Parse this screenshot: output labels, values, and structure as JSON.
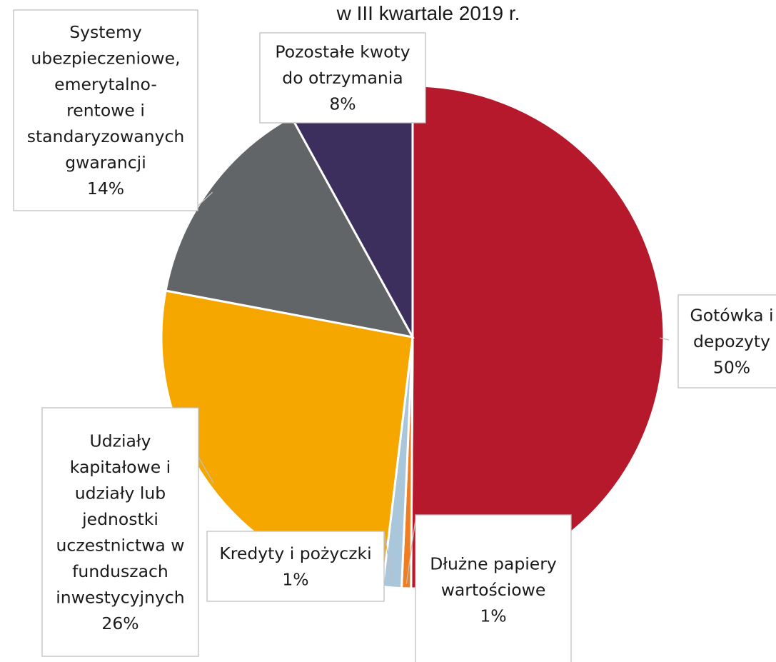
{
  "chart_data": {
    "type": "pie",
    "title": "w III kwartale 2019 r.",
    "start_angle_deg": 0,
    "direction": "clockwise",
    "slices": [
      {
        "label": [
          "Gotówka i",
          "depozyty"
        ],
        "value": 50,
        "display": "50%",
        "color": "#b5192b"
      },
      {
        "label": [
          "Dłużne papiery",
          "wartościowe"
        ],
        "value": 0.6,
        "display": "1%",
        "color": "#ef7d22"
      },
      {
        "label": [
          "Kredyty i pożyczki"
        ],
        "value": 1.2,
        "display": "1%",
        "color": "#a9c6db"
      },
      {
        "label": [
          "Udziały",
          "kapitałowe i",
          "udziały lub",
          "jednostki",
          "uczestnictwa w",
          "funduszach",
          "inwestycyjnych"
        ],
        "value": 26,
        "display": "26%",
        "color": "#f5a700"
      },
      {
        "label": [
          "Systemy",
          "ubezpieczeniowe,",
          "emerytalno-",
          "rentowe i",
          "standaryzowanych",
          "gwarancji"
        ],
        "value": 14,
        "display": "14%",
        "color": "#626567"
      },
      {
        "label": [
          "Pozostałe kwoty",
          "do otrzymania"
        ],
        "value": 8,
        "display": "8%",
        "color": "#3c2f5d"
      }
    ]
  }
}
